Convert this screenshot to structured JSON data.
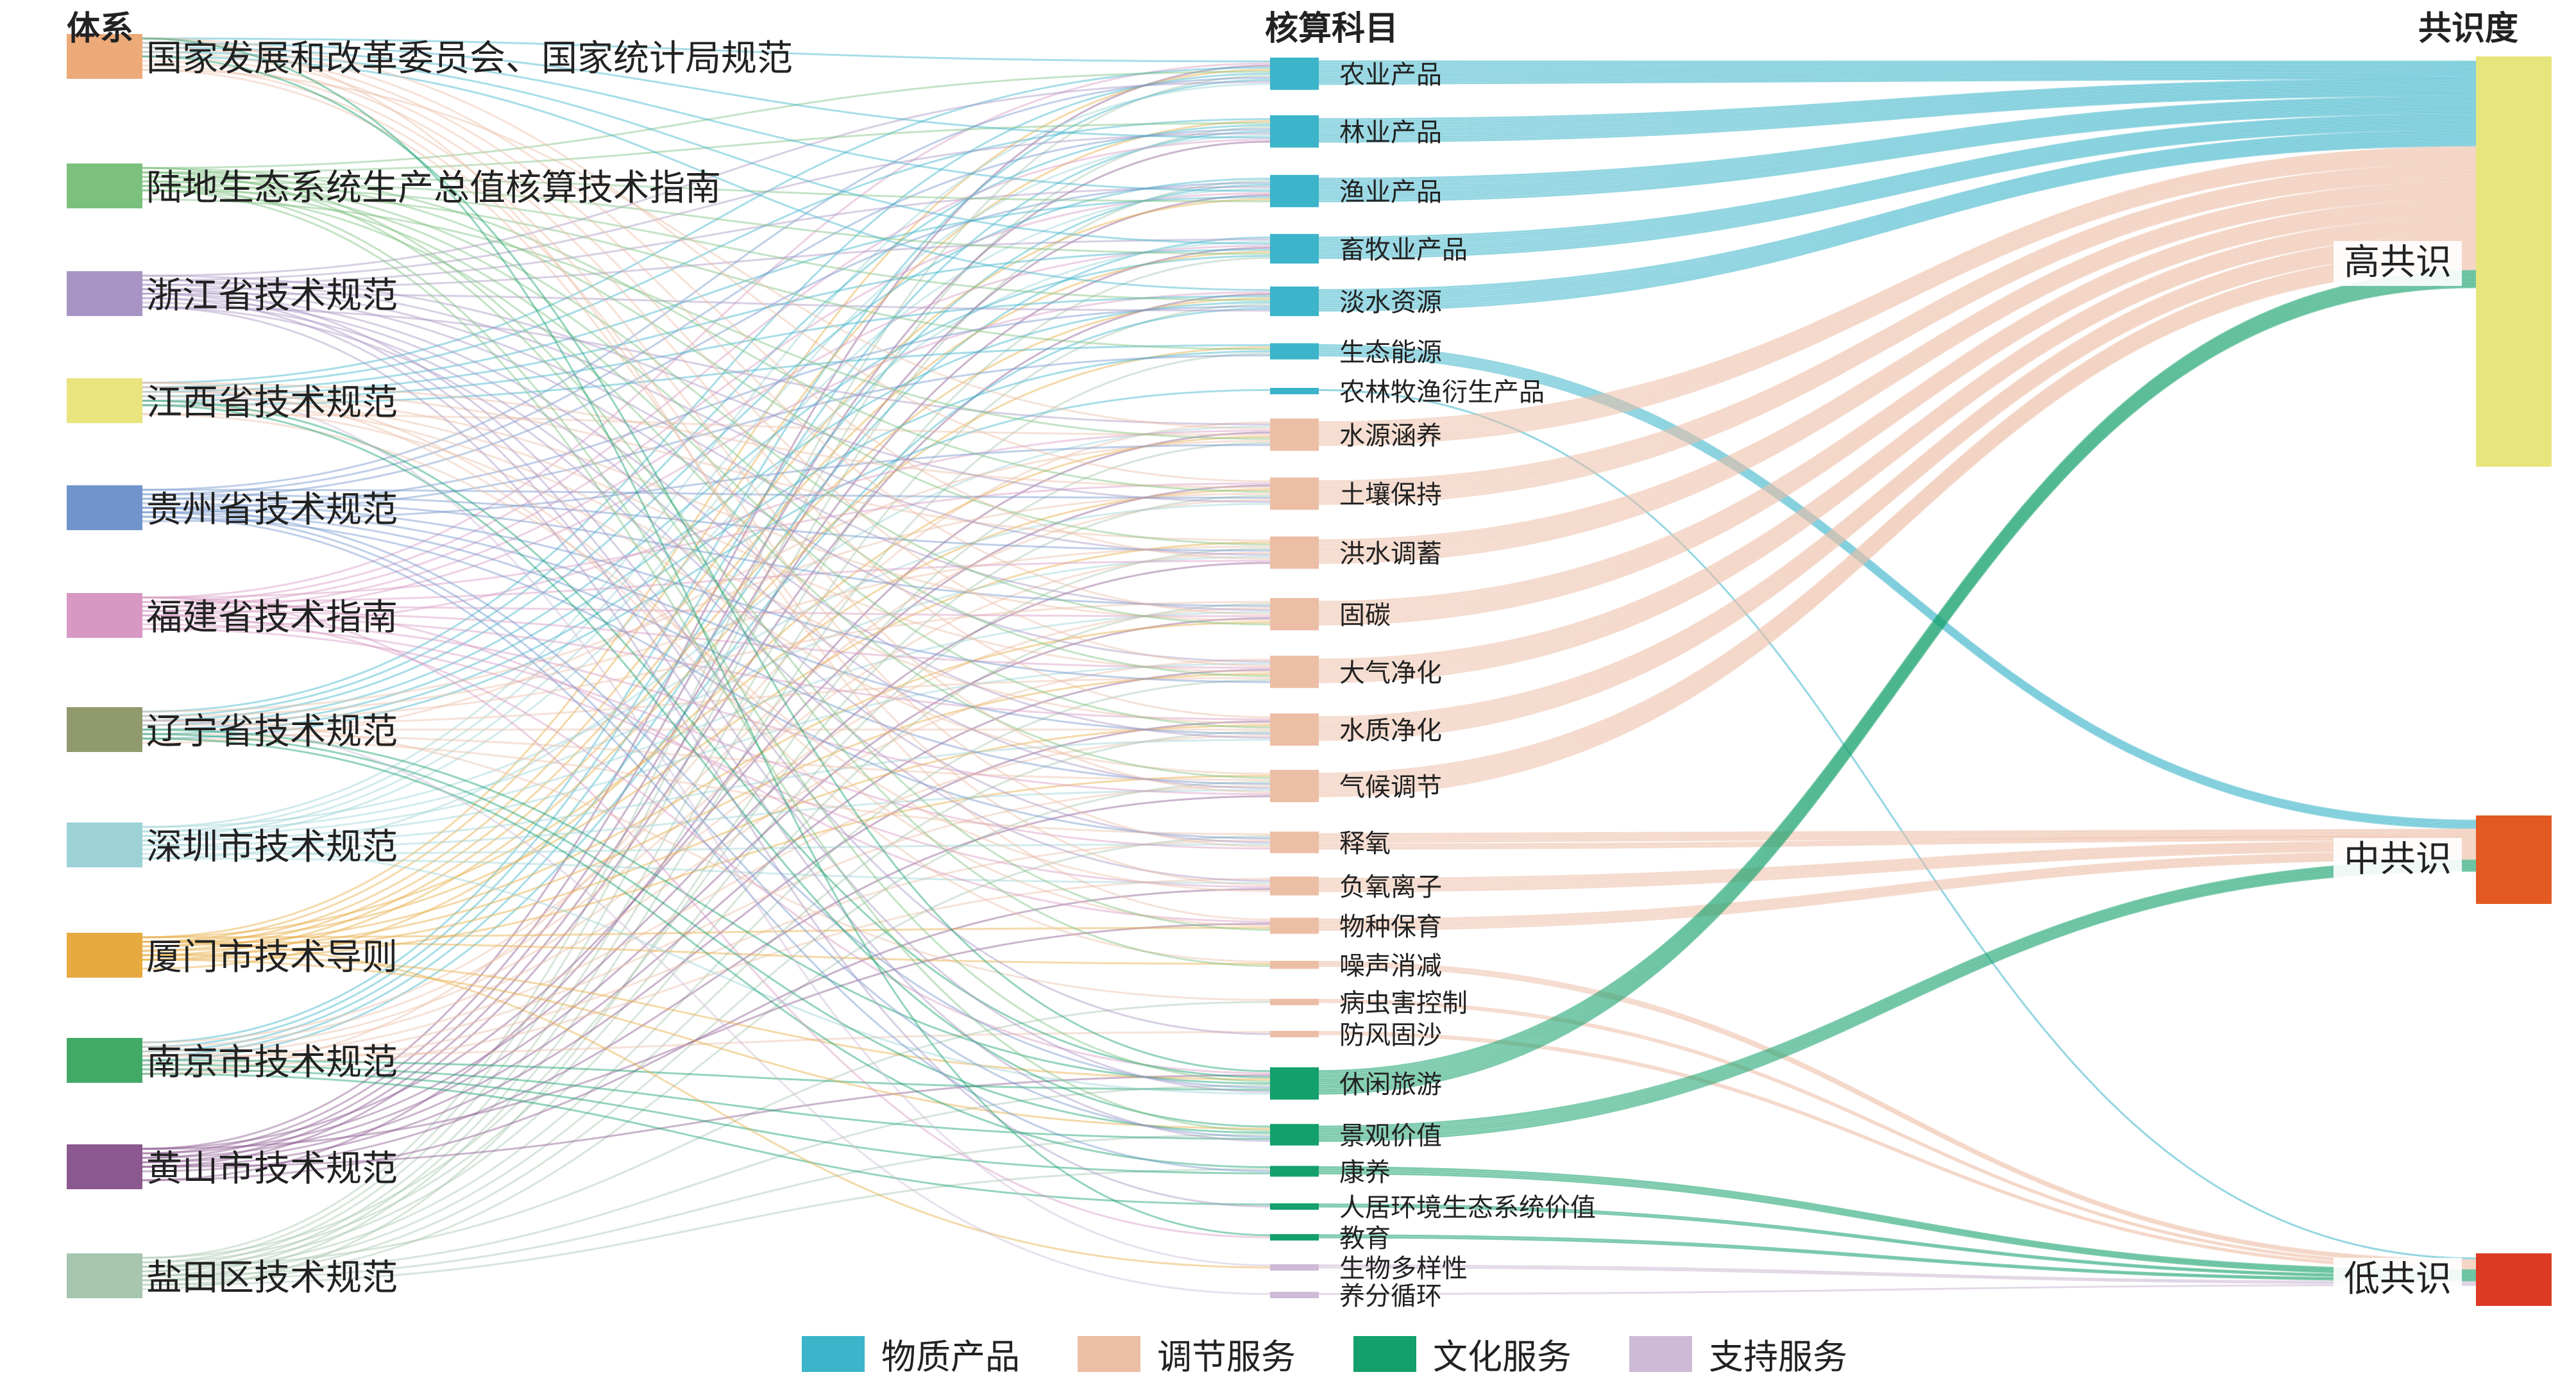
{
  "headers": {
    "left": "体系",
    "middle": "核算科目",
    "right": "共识度"
  },
  "categories": [
    {
      "key": "material",
      "label": "物质产品",
      "color": "#3cb4ca"
    },
    {
      "key": "regulating",
      "label": "调节服务",
      "color": "#ecbea6"
    },
    {
      "key": "cultural",
      "label": "文化服务",
      "color": "#14a06c"
    },
    {
      "key": "supporting",
      "label": "支持服务",
      "color": "#cdbad6"
    }
  ],
  "systems": [
    {
      "label": "国家发展和改革委员会、国家统计局规范",
      "color": "#ecaa78"
    },
    {
      "label": "陆地生态系统生产总值核算技术指南",
      "color": "#7cc07e"
    },
    {
      "label": "浙江省技术规范",
      "color": "#a894c4"
    },
    {
      "label": "江西省技术规范",
      "color": "#e9e47e"
    },
    {
      "label": "贵州省技术规范",
      "color": "#7294cc"
    },
    {
      "label": "福建省技术指南",
      "color": "#d898c4"
    },
    {
      "label": "辽宁省技术规范",
      "color": "#909a6e"
    },
    {
      "label": "深圳市技术规范",
      "color": "#9cd2d6"
    },
    {
      "label": "厦门市技术导则",
      "color": "#e6aa40"
    },
    {
      "label": "南京市技术规范",
      "color": "#42aa66"
    },
    {
      "label": "黄山市技术规范",
      "color": "#8c5890"
    },
    {
      "label": "盐田区技术规范",
      "color": "#a6c6ae"
    }
  ],
  "items": [
    {
      "label": "农业产品",
      "category": "material",
      "consensus": "high",
      "count": 12
    },
    {
      "label": "林业产品",
      "category": "material",
      "consensus": "high",
      "count": 12
    },
    {
      "label": "渔业产品",
      "category": "material",
      "consensus": "high",
      "count": 12
    },
    {
      "label": "畜牧业产品",
      "category": "material",
      "consensus": "high",
      "count": 11
    },
    {
      "label": "淡水资源",
      "category": "material",
      "consensus": "high",
      "count": 11
    },
    {
      "label": "生态能源",
      "category": "material",
      "consensus": "mid",
      "count": 6
    },
    {
      "label": "农林牧渔衍生产品",
      "category": "material",
      "consensus": "low",
      "count": 1
    },
    {
      "label": "水源涵养",
      "category": "regulating",
      "consensus": "high",
      "count": 12
    },
    {
      "label": "土壤保持",
      "category": "regulating",
      "consensus": "high",
      "count": 12
    },
    {
      "label": "洪水调蓄",
      "category": "regulating",
      "consensus": "high",
      "count": 12
    },
    {
      "label": "固碳",
      "category": "regulating",
      "consensus": "high",
      "count": 12
    },
    {
      "label": "大气净化",
      "category": "regulating",
      "consensus": "high",
      "count": 12
    },
    {
      "label": "水质净化",
      "category": "regulating",
      "consensus": "high",
      "count": 12
    },
    {
      "label": "气候调节",
      "category": "regulating",
      "consensus": "high",
      "count": 12
    },
    {
      "label": "释氧",
      "category": "regulating",
      "consensus": "mid",
      "count": 8
    },
    {
      "label": "负氧离子",
      "category": "regulating",
      "consensus": "mid",
      "count": 7
    },
    {
      "label": "物种保育",
      "category": "regulating",
      "consensus": "mid",
      "count": 6
    },
    {
      "label": "噪声消减",
      "category": "regulating",
      "consensus": "low",
      "count": 3
    },
    {
      "label": "病虫害控制",
      "category": "regulating",
      "consensus": "low",
      "count": 2
    },
    {
      "label": "防风固沙",
      "category": "regulating",
      "consensus": "low",
      "count": 2
    },
    {
      "label": "休闲旅游",
      "category": "cultural",
      "consensus": "high",
      "count": 12
    },
    {
      "label": "景观价值",
      "category": "cultural",
      "consensus": "mid",
      "count": 8
    },
    {
      "label": "康养",
      "category": "cultural",
      "consensus": "low",
      "count": 4
    },
    {
      "label": "人居环境生态系统价值",
      "category": "cultural",
      "consensus": "low",
      "count": 2
    },
    {
      "label": "教育",
      "category": "cultural",
      "consensus": "low",
      "count": 2
    },
    {
      "label": "生物多样性",
      "category": "supporting",
      "consensus": "low",
      "count": 2
    },
    {
      "label": "养分循环",
      "category": "supporting",
      "consensus": "low",
      "count": 1
    }
  ],
  "consensus": [
    {
      "key": "high",
      "label": "高共识",
      "color": "#e6e67c"
    },
    {
      "key": "mid",
      "label": "中共识",
      "color": "#e25a22"
    },
    {
      "key": "low",
      "label": "低共识",
      "color": "#dc3a22"
    }
  ]
}
